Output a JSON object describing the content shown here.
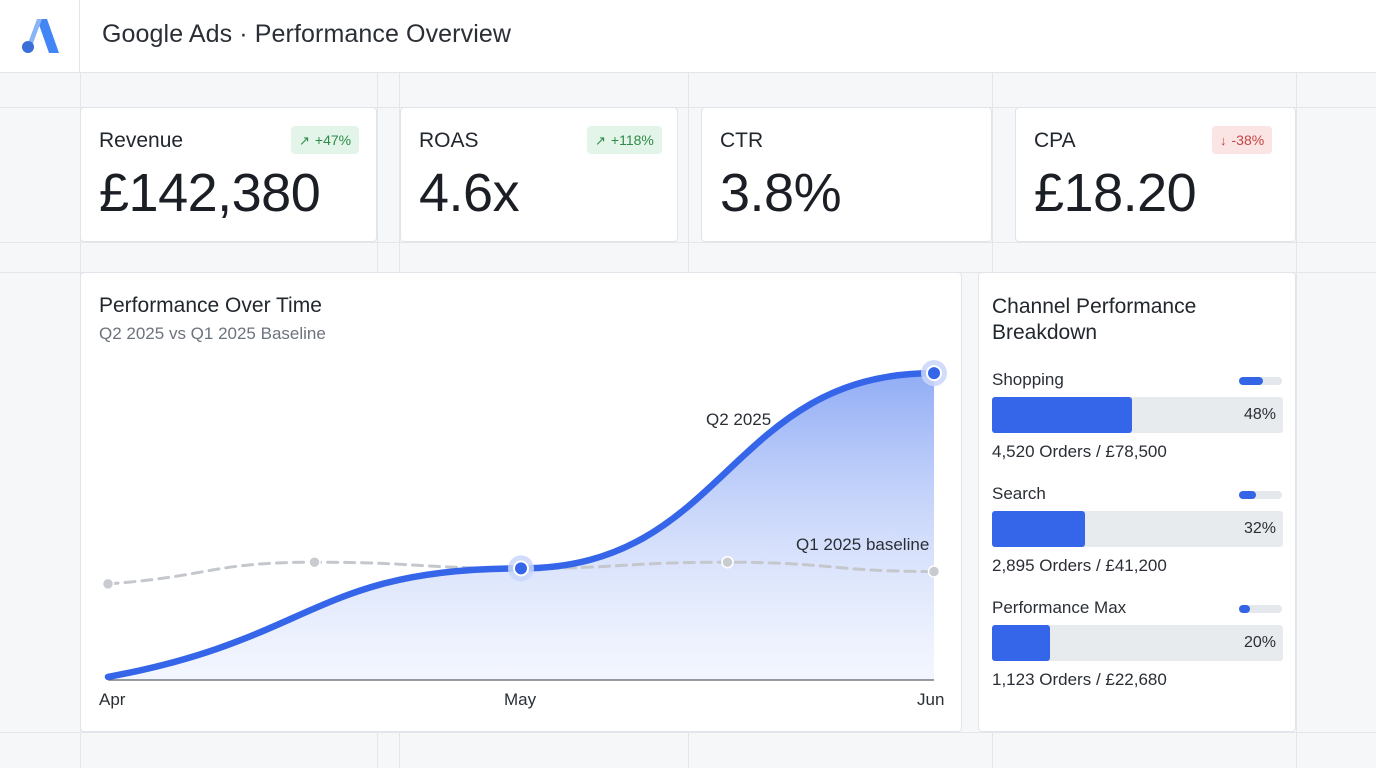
{
  "header": {
    "title": "Google Ads · Performance Overview",
    "logo": "google-ads-logo"
  },
  "kpis": [
    {
      "label": "Revenue",
      "value": "£142,380",
      "badge": "+47%",
      "badge_arrow": "↗",
      "trend": "up"
    },
    {
      "label": "ROAS",
      "value": "4.6x",
      "badge": "+118%",
      "badge_arrow": "↗",
      "trend": "up"
    },
    {
      "label": "CTR",
      "value": "3.8%"
    },
    {
      "label": "CPA",
      "value": "£18.20",
      "badge": "-38%",
      "badge_arrow": "↓",
      "trend": "down"
    }
  ],
  "performance_chart": {
    "title": "Performance Over Time",
    "subtitle": "Q2 2025 vs Q1 2025 Baseline"
  },
  "chart_data": {
    "type": "area",
    "title": "Performance Over Time",
    "subtitle": "Q2 2025 vs Q1 2025 Baseline",
    "x_ticks": [
      "Apr",
      "May",
      "Jun"
    ],
    "x": [
      0,
      0.5,
      1
    ],
    "ylim": [
      0,
      100
    ],
    "grid": false,
    "series": [
      {
        "name": "Q2 2025",
        "style": "solid-area",
        "color": "#3565e8",
        "points": [
          [
            0,
            1
          ],
          [
            0.5,
            36
          ],
          [
            1,
            99
          ]
        ]
      },
      {
        "name": "Q1 2025 baseline",
        "style": "dashed",
        "color": "#c4c7cc",
        "points": [
          [
            0,
            31
          ],
          [
            0.25,
            38
          ],
          [
            0.5,
            36
          ],
          [
            0.75,
            38
          ],
          [
            1,
            35
          ]
        ]
      }
    ]
  },
  "channels": {
    "title": "Channel Performance Breakdown",
    "items": [
      {
        "name": "Shopping",
        "share": 0.48,
        "pct_label": "48%",
        "stats": "4,520 Orders / £78,500",
        "mini_fill": 0.55
      },
      {
        "name": "Search",
        "share": 0.32,
        "pct_label": "32%",
        "stats": "2,895 Orders / £41,200",
        "mini_fill": 0.4
      },
      {
        "name": "Performance Max",
        "share": 0.2,
        "pct_label": "20%",
        "stats": "1,123 Orders / £22,680",
        "mini_fill": 0.25
      }
    ]
  },
  "colors": {
    "accent": "#3566ea",
    "positive": "#2f8a4a",
    "negative": "#c74343",
    "baseline": "#c4c7cc"
  }
}
